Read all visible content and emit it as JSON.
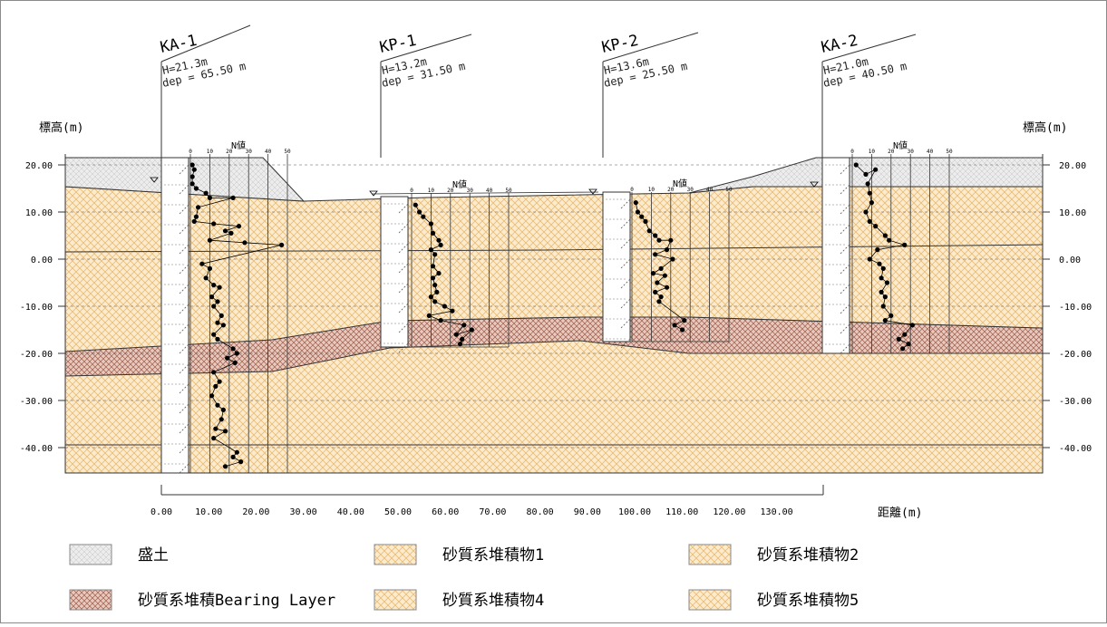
{
  "axis": {
    "y_label_left": "標高(m)",
    "y_label_right": "標高(m)",
    "x_label": "距離(m)",
    "y_ticks": [
      "20.00",
      "10.00",
      "0.00",
      "-10.00",
      "-20.00",
      "-30.00",
      "-40.00"
    ],
    "y_values": [
      20,
      10,
      0,
      -10,
      -20,
      -30,
      -40
    ],
    "x_ticks": [
      "0.00",
      "10.00",
      "20.00",
      "30.00",
      "40.00",
      "50.00",
      "60.00",
      "70.00",
      "80.00",
      "90.00",
      "100.00",
      "110.00",
      "120.00",
      "130.00"
    ]
  },
  "n_label": "N値",
  "n_ticks": [
    "0",
    "10",
    "20",
    "30",
    "40",
    "50"
  ],
  "boreholes": [
    {
      "name": "KA-1",
      "h": "H=21.3m",
      "dep": "dep = 65.50 m"
    },
    {
      "name": "KP-1",
      "h": "H=13.2m",
      "dep": "dep = 31.50 m"
    },
    {
      "name": "KP-2",
      "h": "H=13.6m",
      "dep": "dep = 25.50 m"
    },
    {
      "name": "KA-2",
      "h": "H=21.0m",
      "dep": "dep = 40.50 m"
    }
  ],
  "legend": [
    {
      "label": "盛土",
      "pattern": "fill",
      "color": "#e6e6e6"
    },
    {
      "label": "砂質系堆積物1",
      "pattern": "sand",
      "color": "#fbeacb"
    },
    {
      "label": "砂質系堆積物2",
      "pattern": "sand",
      "color": "#fbeacb"
    },
    {
      "label": "砂質系堆積Bearing Layer",
      "pattern": "bearing",
      "color": "#e8c9bc"
    },
    {
      "label": "砂質系堆積物4",
      "pattern": "sand",
      "color": "#fbeacb"
    },
    {
      "label": "砂質系堆積物5",
      "pattern": "sand",
      "color": "#fbeacb"
    }
  ],
  "colors": {
    "fill": "#e6e6e6",
    "sand": "#fbeacb",
    "sand_hatch": "#e8b46a",
    "bearing": "#e8c9bc",
    "bearing_hatch": "#b77566"
  }
}
